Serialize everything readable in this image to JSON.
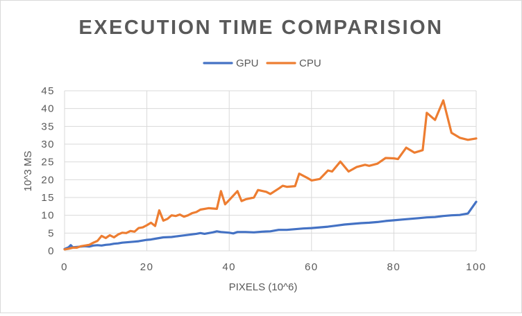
{
  "chart_data": {
    "type": "line",
    "title": "EXECUTION TIME COMPARISION",
    "xlabel": "PIXELS (10^6)",
    "ylabel": "10^3 MS",
    "xlim": [
      0,
      100
    ],
    "ylim": [
      0,
      45
    ],
    "x_ticks": [
      0,
      20,
      40,
      60,
      80,
      100
    ],
    "y_ticks": [
      0,
      5,
      10,
      15,
      20,
      25,
      30,
      35,
      40,
      45
    ],
    "grid": true,
    "legend_position": "top",
    "series": [
      {
        "name": "GPU",
        "color": "#4472C4",
        "points": [
          [
            0,
            0.5
          ],
          [
            1,
            1.0
          ],
          [
            1.5,
            1.6
          ],
          [
            2,
            1.0
          ],
          [
            3,
            1.1
          ],
          [
            4,
            1.2
          ],
          [
            5,
            1.3
          ],
          [
            6,
            1.2
          ],
          [
            7,
            1.5
          ],
          [
            8,
            1.6
          ],
          [
            9,
            1.5
          ],
          [
            10,
            1.7
          ],
          [
            11,
            1.8
          ],
          [
            12,
            2.0
          ],
          [
            13,
            2.1
          ],
          [
            14,
            2.3
          ],
          [
            15,
            2.4
          ],
          [
            16,
            2.5
          ],
          [
            17,
            2.6
          ],
          [
            18,
            2.7
          ],
          [
            19,
            2.9
          ],
          [
            20,
            3.1
          ],
          [
            21,
            3.2
          ],
          [
            22,
            3.4
          ],
          [
            23,
            3.6
          ],
          [
            24,
            3.8
          ],
          [
            26,
            3.9
          ],
          [
            28,
            4.2
          ],
          [
            30,
            4.5
          ],
          [
            32,
            4.8
          ],
          [
            33,
            5.0
          ],
          [
            34,
            4.8
          ],
          [
            36,
            5.2
          ],
          [
            37,
            5.5
          ],
          [
            38,
            5.3
          ],
          [
            40,
            5.1
          ],
          [
            41,
            4.9
          ],
          [
            42,
            5.3
          ],
          [
            44,
            5.3
          ],
          [
            46,
            5.2
          ],
          [
            48,
            5.4
          ],
          [
            50,
            5.5
          ],
          [
            52,
            5.9
          ],
          [
            54,
            5.9
          ],
          [
            56,
            6.1
          ],
          [
            58,
            6.3
          ],
          [
            60,
            6.4
          ],
          [
            62,
            6.6
          ],
          [
            64,
            6.8
          ],
          [
            66,
            7.1
          ],
          [
            68,
            7.4
          ],
          [
            70,
            7.6
          ],
          [
            72,
            7.8
          ],
          [
            74,
            7.9
          ],
          [
            76,
            8.1
          ],
          [
            78,
            8.4
          ],
          [
            80,
            8.6
          ],
          [
            82,
            8.8
          ],
          [
            84,
            9.0
          ],
          [
            86,
            9.2
          ],
          [
            88,
            9.4
          ],
          [
            90,
            9.5
          ],
          [
            92,
            9.8
          ],
          [
            94,
            10.0
          ],
          [
            96,
            10.1
          ],
          [
            98,
            10.5
          ],
          [
            100,
            13.8
          ]
        ]
      },
      {
        "name": "CPU",
        "color": "#ED7D31",
        "points": [
          [
            0,
            0.4
          ],
          [
            1,
            0.6
          ],
          [
            2,
            0.9
          ],
          [
            3,
            0.9
          ],
          [
            4,
            1.3
          ],
          [
            5,
            1.5
          ],
          [
            6,
            1.7
          ],
          [
            7,
            2.3
          ],
          [
            8,
            2.8
          ],
          [
            9,
            4.2
          ],
          [
            10,
            3.6
          ],
          [
            11,
            4.4
          ],
          [
            12,
            3.8
          ],
          [
            13,
            4.6
          ],
          [
            14,
            5.1
          ],
          [
            15,
            5.0
          ],
          [
            16,
            5.6
          ],
          [
            17,
            5.4
          ],
          [
            18,
            6.4
          ],
          [
            19,
            6.6
          ],
          [
            20,
            7.2
          ],
          [
            21,
            7.9
          ],
          [
            22,
            7.0
          ],
          [
            23,
            11.4
          ],
          [
            24,
            8.5
          ],
          [
            25,
            9.0
          ],
          [
            26,
            10.0
          ],
          [
            27,
            9.8
          ],
          [
            28,
            10.2
          ],
          [
            29,
            9.6
          ],
          [
            30,
            10.0
          ],
          [
            31,
            10.6
          ],
          [
            32,
            10.9
          ],
          [
            33,
            11.6
          ],
          [
            35,
            12.0
          ],
          [
            37,
            11.8
          ],
          [
            38,
            16.8
          ],
          [
            39,
            13.1
          ],
          [
            40,
            14.3
          ],
          [
            42,
            16.8
          ],
          [
            43,
            14.0
          ],
          [
            44,
            14.5
          ],
          [
            46,
            15.0
          ],
          [
            47,
            17.1
          ],
          [
            49,
            16.6
          ],
          [
            50,
            16.0
          ],
          [
            52,
            17.5
          ],
          [
            53,
            18.3
          ],
          [
            54,
            18.0
          ],
          [
            56,
            18.2
          ],
          [
            57,
            21.7
          ],
          [
            59,
            20.5
          ],
          [
            60,
            19.8
          ],
          [
            62,
            20.2
          ],
          [
            64,
            22.6
          ],
          [
            65,
            22.3
          ],
          [
            67,
            25.1
          ],
          [
            69,
            22.3
          ],
          [
            71,
            23.6
          ],
          [
            73,
            24.2
          ],
          [
            74,
            23.9
          ],
          [
            76,
            24.5
          ],
          [
            78,
            26.1
          ],
          [
            80,
            26.0
          ],
          [
            81,
            25.8
          ],
          [
            83,
            29.0
          ],
          [
            85,
            27.6
          ],
          [
            87,
            28.3
          ],
          [
            88,
            38.8
          ],
          [
            90,
            36.8
          ],
          [
            92,
            42.3
          ],
          [
            94,
            33.2
          ],
          [
            96,
            31.8
          ],
          [
            98,
            31.2
          ],
          [
            100,
            31.6
          ]
        ]
      }
    ]
  }
}
